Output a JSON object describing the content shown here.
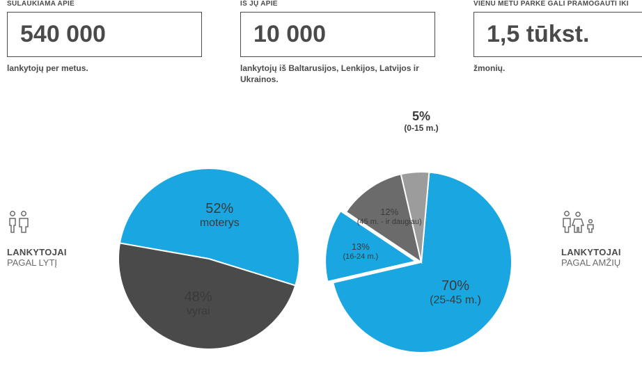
{
  "colors": {
    "blue": "#1aa6e0",
    "darkgray": "#4a4a4a",
    "midgray": "#6b6b6b",
    "lightgray": "#9c9c9c",
    "stroke": "#ffffff"
  },
  "stats": [
    {
      "top": "SULAUKIAMA APIE",
      "value": "540 000",
      "below": "lankytojų per metus."
    },
    {
      "top": "IŠ JŲ APIE",
      "value": "10 000",
      "below": "lankytojų iš Baltarusijos, Lenkijos, Latvijos ir Ukrainos."
    },
    {
      "top": "VIENU METU PARKE GALI PRAMOGAUTI IKI",
      "value": "1,5 tūkst.",
      "below": "žmonių."
    }
  ],
  "leftLabel": {
    "line1": "LANKYTOJAI",
    "line2": "PAGAL LYTĮ",
    "iconType": "gender"
  },
  "rightLabel": {
    "line1": "LANKYTOJAI",
    "line2": "PAGAL AMŽIŲ",
    "iconType": "age"
  },
  "genderChart": {
    "type": "pie",
    "radius": 130,
    "stroke_width": 2,
    "slices": [
      {
        "pct": 52,
        "color": "#1aa6e0",
        "label_pct": "52%",
        "label_sub": "moterys",
        "label_fontsize": 20
      },
      {
        "pct": 48,
        "color": "#4a4a4a",
        "label_pct": "48%",
        "label_sub": "vyrai",
        "label_fontsize": 20
      }
    ],
    "start_angle": -80
  },
  "ageChart": {
    "type": "pie",
    "radius": 130,
    "stroke_width": 2,
    "pulled_out": 8,
    "slices": [
      {
        "pct": 70,
        "color": "#1aa6e0",
        "label_pct": "70%",
        "label_sub": "(25-45 m.)",
        "label_fontsize": 20,
        "pull": false
      },
      {
        "pct": 13,
        "color": "#1aa6e0",
        "label_pct": "13%",
        "label_sub": "(16-24 m.)",
        "label_fontsize": 13,
        "pull": true
      },
      {
        "pct": 12,
        "color": "#6b6b6b",
        "label_pct": "12%",
        "label_sub": "(45 m. - ir daugiau)",
        "label_fontsize": 13,
        "pull": false
      },
      {
        "pct": 5,
        "color": "#9c9c9c",
        "label_pct": "5%",
        "label_sub": "(0-15 m.)",
        "label_fontsize": 18,
        "pull": false,
        "callout": true
      }
    ],
    "start_angle": 5
  }
}
